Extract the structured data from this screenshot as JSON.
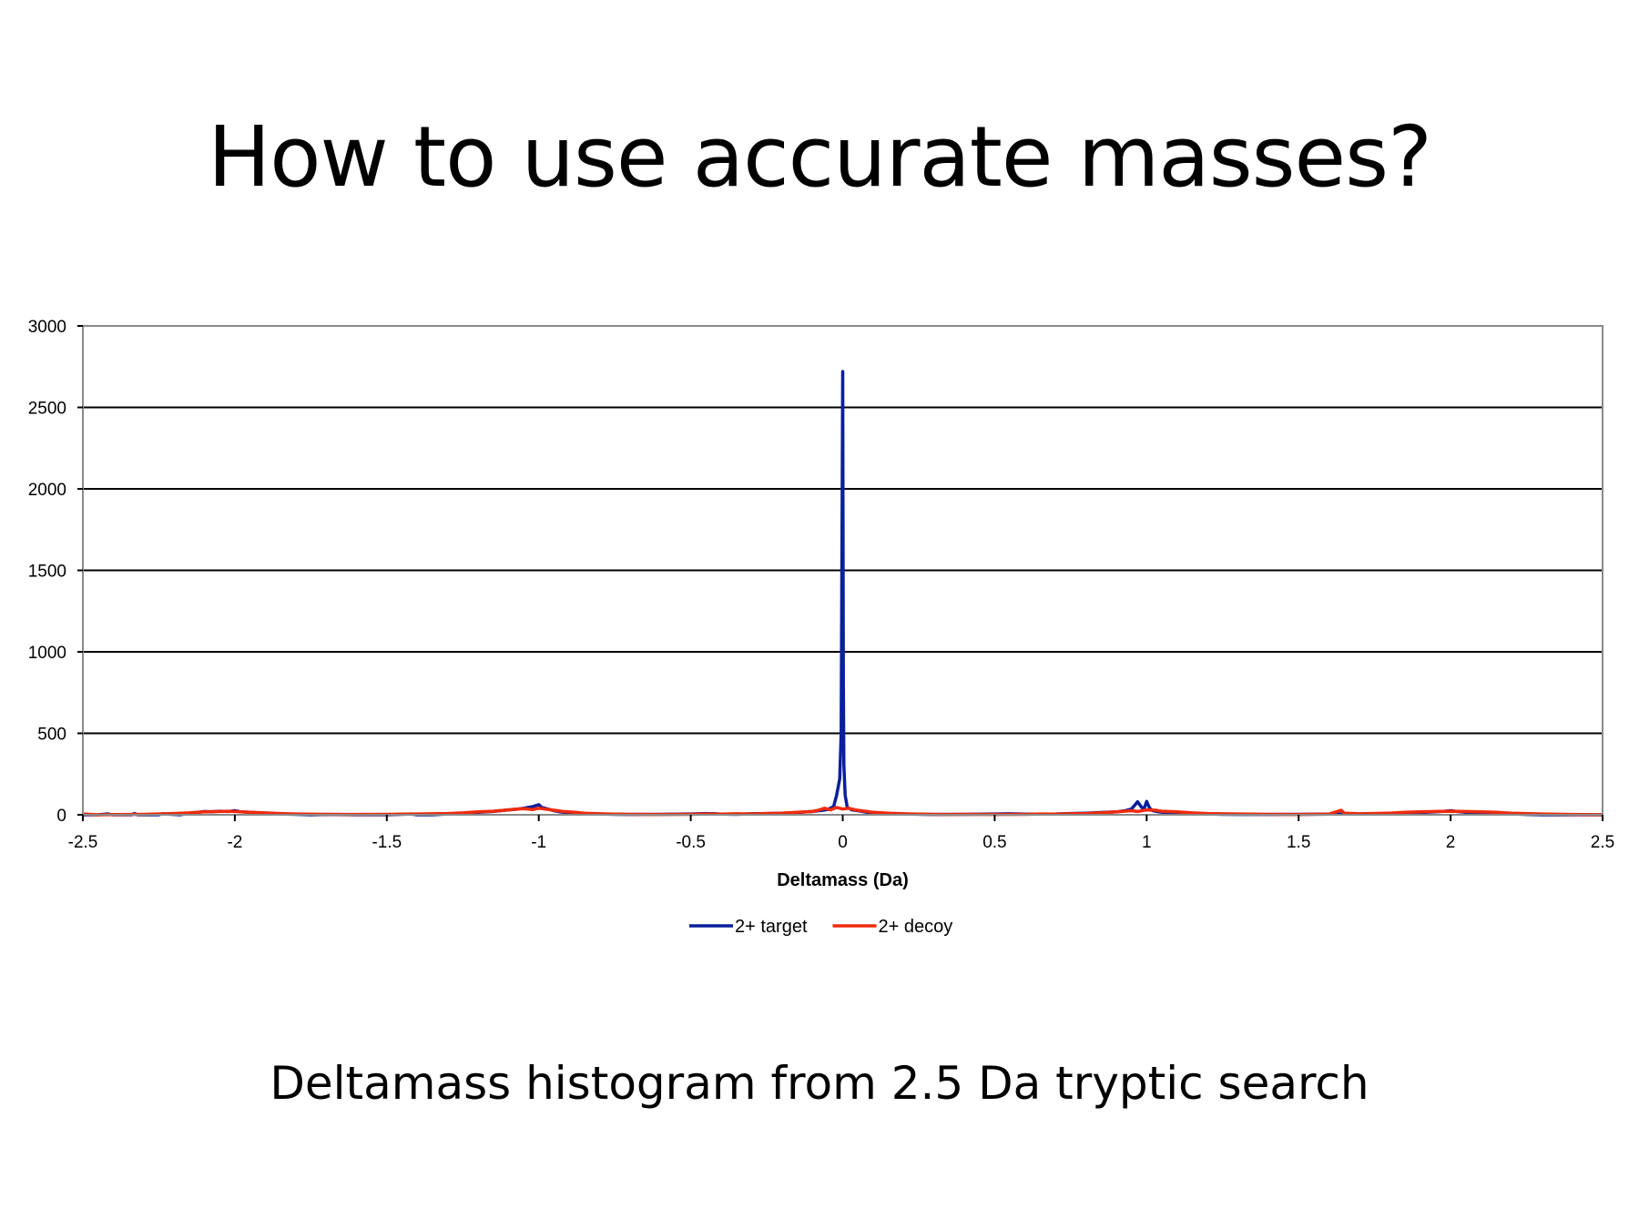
{
  "slide": {
    "title": "How to use accurate masses?",
    "caption": "Deltamass histogram from 2.5 Da tryptic search"
  },
  "chart_data": {
    "type": "line",
    "xlabel": "Deltamass (Da)",
    "ylabel": "",
    "xlim": [
      -2.5,
      2.5
    ],
    "ylim": [
      0,
      3000
    ],
    "x_ticks": [
      -2.5,
      -2,
      -1.5,
      -1,
      -0.5,
      0,
      0.5,
      1,
      1.5,
      2,
      2.5
    ],
    "x_tick_labels": [
      "-2.5",
      "-2",
      "-1.5",
      "-1",
      "-0.5",
      "0",
      "0.5",
      "1",
      "1.5",
      "2",
      "2.5"
    ],
    "y_ticks": [
      0,
      500,
      1000,
      1500,
      2000,
      2500,
      3000
    ],
    "y_tick_labels": [
      "0",
      "500",
      "1000",
      "1500",
      "2000",
      "2500",
      "3000"
    ],
    "grid": "horizontal",
    "legend": "bottom-center",
    "series": [
      {
        "name": "2+ target",
        "color": "#0a1f9c",
        "x": [
          -2.5,
          -2.45,
          -2.42,
          -2.4,
          -2.34,
          -2.33,
          -2.32,
          -2.25,
          -2.24,
          -2.18,
          -2.15,
          -2.12,
          -2.1,
          -2.08,
          -2.05,
          -2.02,
          -2.0,
          -1.98,
          -1.95,
          -1.92,
          -1.9,
          -1.87,
          -1.85,
          -1.8,
          -1.75,
          -1.7,
          -1.6,
          -1.5,
          -1.42,
          -1.4,
          -1.35,
          -1.3,
          -1.25,
          -1.2,
          -1.15,
          -1.1,
          -1.07,
          -1.05,
          -1.02,
          -1.0,
          -0.99,
          -0.97,
          -0.95,
          -0.93,
          -0.9,
          -0.85,
          -0.8,
          -0.75,
          -0.7,
          -0.6,
          -0.5,
          -0.45,
          -0.42,
          -0.4,
          -0.35,
          -0.3,
          -0.25,
          -0.2,
          -0.15,
          -0.1,
          -0.07,
          -0.05,
          -0.03,
          -0.02,
          -0.01,
          -0.005,
          0.0,
          0.002,
          0.004,
          0.008,
          0.015,
          0.03,
          0.05,
          0.08,
          0.1,
          0.15,
          0.2,
          0.27,
          0.3,
          0.4,
          0.5,
          0.55,
          0.6,
          0.7,
          0.75,
          0.8,
          0.85,
          0.9,
          0.93,
          0.95,
          0.97,
          0.98,
          0.99,
          1.0,
          1.01,
          1.02,
          1.04,
          1.06,
          1.1,
          1.15,
          1.2,
          1.25,
          1.3,
          1.4,
          1.5,
          1.6,
          1.7,
          1.8,
          1.85,
          1.9,
          1.95,
          1.98,
          2.0,
          2.02,
          2.05,
          2.1,
          2.15,
          2.2,
          2.22,
          2.25,
          2.3,
          2.4,
          2.5
        ],
        "y": [
          0,
          0,
          5,
          0,
          0,
          8,
          0,
          0,
          6,
          0,
          10,
          15,
          20,
          18,
          22,
          20,
          25,
          18,
          15,
          12,
          10,
          8,
          5,
          3,
          0,
          2,
          0,
          0,
          5,
          0,
          0,
          5,
          10,
          15,
          20,
          30,
          35,
          40,
          50,
          62,
          45,
          35,
          25,
          18,
          12,
          8,
          5,
          3,
          2,
          3,
          5,
          8,
          6,
          4,
          3,
          6,
          8,
          10,
          14,
          20,
          26,
          32,
          50,
          120,
          220,
          500,
          2720,
          800,
          300,
          120,
          45,
          30,
          25,
          15,
          10,
          8,
          5,
          3,
          2,
          3,
          5,
          6,
          4,
          5,
          8,
          10,
          14,
          18,
          25,
          35,
          80,
          55,
          30,
          82,
          40,
          25,
          18,
          14,
          10,
          8,
          5,
          3,
          2,
          2,
          3,
          4,
          5,
          6,
          10,
          14,
          18,
          22,
          25,
          20,
          15,
          10,
          6,
          8,
          4,
          2,
          0,
          0,
          0
        ]
      },
      {
        "name": "2+ decoy",
        "color": "#f02a0c",
        "x": [
          -2.5,
          -2.45,
          -2.3,
          -2.2,
          -2.15,
          -2.1,
          -2.05,
          -2.02,
          -2.0,
          -1.95,
          -1.9,
          -1.85,
          -1.8,
          -1.7,
          -1.6,
          -1.5,
          -1.4,
          -1.3,
          -1.25,
          -1.2,
          -1.15,
          -1.1,
          -1.07,
          -1.05,
          -1.02,
          -1.0,
          -0.98,
          -0.95,
          -0.92,
          -0.88,
          -0.85,
          -0.8,
          -0.75,
          -0.7,
          -0.6,
          -0.5,
          -0.45,
          -0.4,
          -0.35,
          -0.3,
          -0.25,
          -0.2,
          -0.15,
          -0.1,
          -0.08,
          -0.06,
          -0.04,
          -0.02,
          0.0,
          0.02,
          0.04,
          0.06,
          0.08,
          0.1,
          0.15,
          0.2,
          0.25,
          0.3,
          0.35,
          0.4,
          0.5,
          0.6,
          0.65,
          0.7,
          0.75,
          0.8,
          0.85,
          0.9,
          0.95,
          0.97,
          1.0,
          1.03,
          1.05,
          1.1,
          1.15,
          1.2,
          1.3,
          1.4,
          1.5,
          1.6,
          1.64,
          1.65,
          1.7,
          1.8,
          1.85,
          1.9,
          1.95,
          2.0,
          2.05,
          2.1,
          2.15,
          2.2,
          2.3,
          2.4,
          2.5
        ],
        "y": [
          5,
          0,
          3,
          8,
          12,
          18,
          20,
          22,
          20,
          15,
          12,
          8,
          5,
          3,
          2,
          3,
          5,
          8,
          12,
          18,
          22,
          30,
          35,
          38,
          32,
          40,
          35,
          28,
          20,
          15,
          10,
          6,
          4,
          3,
          2,
          3,
          5,
          4,
          6,
          5,
          8,
          10,
          15,
          20,
          28,
          40,
          30,
          45,
          35,
          40,
          30,
          25,
          20,
          15,
          10,
          6,
          4,
          3,
          2,
          3,
          2,
          3,
          5,
          4,
          6,
          8,
          12,
          18,
          25,
          20,
          30,
          28,
          22,
          18,
          12,
          8,
          5,
          3,
          2,
          4,
          28,
          10,
          6,
          10,
          15,
          18,
          20,
          22,
          20,
          18,
          15,
          10,
          5,
          2,
          0
        ]
      }
    ]
  }
}
